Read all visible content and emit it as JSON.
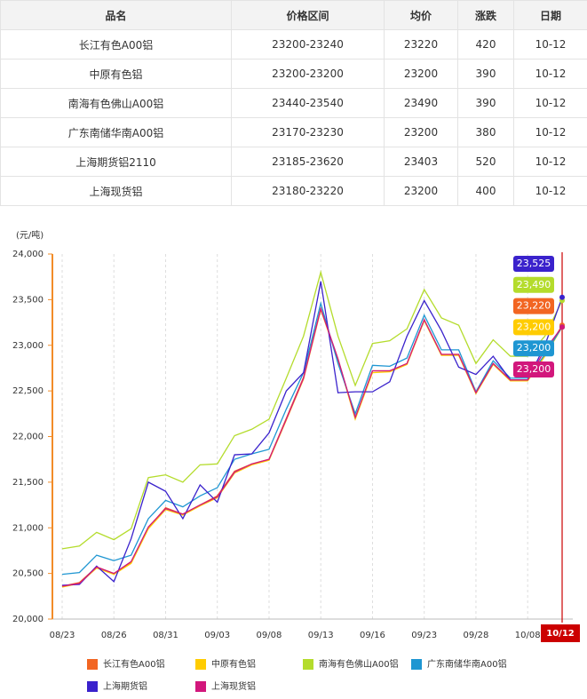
{
  "table": {
    "header": [
      "品名",
      "价格区间",
      "均价",
      "涨跌",
      "日期"
    ],
    "rows": [
      [
        "长江有色A00铝",
        "23200-23240",
        "23220",
        "420",
        "10-12"
      ],
      [
        "中原有色铝",
        "23200-23200",
        "23200",
        "390",
        "10-12"
      ],
      [
        "南海有色佛山A00铝",
        "23440-23540",
        "23490",
        "390",
        "10-12"
      ],
      [
        "广东南储华南A00铝",
        "23170-23230",
        "23200",
        "380",
        "10-12"
      ],
      [
        "上海期货铝2110",
        "23185-23620",
        "23403",
        "520",
        "10-12"
      ],
      [
        "上海现货铝",
        "23180-23220",
        "23200",
        "400",
        "10-12"
      ]
    ]
  },
  "chart_data": {
    "type": "line",
    "y_label": "(元/吨)",
    "categories": [
      "08/23",
      null,
      null,
      "08/26",
      null,
      null,
      "08/31",
      null,
      null,
      "09/03",
      null,
      null,
      "09/08",
      null,
      null,
      "09/13",
      null,
      null,
      "09/16",
      null,
      null,
      "09/23",
      null,
      null,
      "09/28",
      null,
      null,
      "10/08",
      null,
      "10/12"
    ],
    "ylim": [
      20000,
      24000
    ],
    "yticks": [
      {
        "value": 20000,
        "label": "20,000"
      },
      {
        "value": 20500,
        "label": "20,500"
      },
      {
        "value": 21000,
        "label": "21,000"
      },
      {
        "value": 21500,
        "label": "21,500"
      },
      {
        "value": 22000,
        "label": "22,000"
      },
      {
        "value": 22500,
        "label": "22,500"
      },
      {
        "value": 23000,
        "label": "23,000"
      },
      {
        "value": 23500,
        "label": "23,500"
      },
      {
        "value": 24000,
        "label": "24,000"
      }
    ],
    "series": [
      {
        "name": "长江有色A00铝",
        "color": "#f26522",
        "values": [
          20360,
          20400,
          20570,
          20500,
          20620,
          21000,
          21220,
          21150,
          21250,
          21350,
          21620,
          21700,
          21750,
          22200,
          22650,
          23400,
          22850,
          22200,
          22720,
          22720,
          22800,
          23280,
          22900,
          22900,
          22480,
          22800,
          22620,
          22620,
          22900,
          23220
        ],
        "value_labels": [
          null,
          null,
          null,
          null,
          null,
          null,
          null,
          null,
          null,
          null,
          null,
          null,
          null,
          null,
          null,
          null,
          null,
          null,
          null,
          null,
          null,
          null,
          null,
          null,
          null,
          null,
          null,
          null,
          null,
          "23,220"
        ]
      },
      {
        "name": "中原有色铝",
        "color": "#ffcc00",
        "values": [
          20350,
          20390,
          20560,
          20490,
          20610,
          20990,
          21200,
          21140,
          21240,
          21330,
          21600,
          21690,
          21740,
          22180,
          22630,
          23390,
          22840,
          22190,
          22700,
          22710,
          22790,
          23270,
          22890,
          22890,
          22470,
          22790,
          22610,
          22610,
          22880,
          23200
        ],
        "value_labels": [
          null,
          null,
          null,
          null,
          null,
          null,
          null,
          null,
          null,
          null,
          null,
          null,
          null,
          null,
          null,
          null,
          null,
          null,
          null,
          null,
          null,
          null,
          null,
          null,
          null,
          null,
          null,
          null,
          null,
          "23,200"
        ]
      },
      {
        "name": "南海有色佛山A00铝",
        "color": "#b4dc2c",
        "values": [
          20770,
          20800,
          20950,
          20870,
          20990,
          21550,
          21580,
          21500,
          21690,
          21700,
          22010,
          22080,
          22190,
          22640,
          23100,
          23800,
          23100,
          22560,
          23020,
          23050,
          23180,
          23610,
          23300,
          23220,
          22800,
          23060,
          22880,
          22880,
          23100,
          23490
        ],
        "value_labels": [
          null,
          null,
          null,
          null,
          null,
          null,
          null,
          null,
          null,
          null,
          null,
          null,
          null,
          null,
          null,
          null,
          null,
          null,
          null,
          null,
          null,
          null,
          null,
          null,
          null,
          null,
          null,
          null,
          null,
          "23,490"
        ]
      },
      {
        "name": "广东南储华南A00铝",
        "color": "#1e96d2",
        "values": [
          20490,
          20510,
          20700,
          20640,
          20700,
          21100,
          21300,
          21230,
          21350,
          21440,
          21750,
          21810,
          21860,
          22300,
          22700,
          23460,
          22800,
          22250,
          22780,
          22770,
          22860,
          23330,
          22950,
          22950,
          22490,
          22830,
          22640,
          22640,
          22900,
          23200
        ],
        "value_labels": [
          null,
          null,
          null,
          null,
          null,
          null,
          null,
          null,
          null,
          null,
          null,
          null,
          null,
          null,
          null,
          null,
          null,
          null,
          null,
          null,
          null,
          null,
          null,
          null,
          null,
          null,
          null,
          null,
          null,
          "23,200"
        ]
      },
      {
        "name": "上海期货铝",
        "color": "#3a22cc",
        "values": [
          20370,
          20380,
          20580,
          20410,
          20880,
          21500,
          21400,
          21100,
          21470,
          21280,
          21800,
          21810,
          22040,
          22500,
          22700,
          23700,
          22480,
          22490,
          22490,
          22600,
          23100,
          23490,
          23160,
          22760,
          22680,
          22880,
          22620,
          22620,
          23000,
          23525
        ],
        "value_labels": [
          null,
          null,
          null,
          null,
          null,
          null,
          null,
          null,
          null,
          null,
          null,
          null,
          null,
          null,
          null,
          null,
          null,
          null,
          null,
          null,
          null,
          null,
          null,
          null,
          null,
          null,
          null,
          null,
          null,
          "23,525"
        ]
      },
      {
        "name": "上海现货铝",
        "color": "#d2177c",
        "values": [
          20360,
          20390,
          20570,
          20500,
          20630,
          21010,
          21210,
          21150,
          21250,
          21340,
          21610,
          21700,
          21750,
          22190,
          22640,
          23400,
          22850,
          22210,
          22720,
          22720,
          22800,
          23280,
          22900,
          22900,
          22480,
          22800,
          22620,
          22620,
          22950,
          23200
        ],
        "value_labels": [
          null,
          null,
          null,
          null,
          null,
          null,
          null,
          null,
          null,
          null,
          null,
          null,
          null,
          null,
          null,
          null,
          null,
          null,
          null,
          null,
          null,
          null,
          null,
          null,
          null,
          null,
          null,
          null,
          null,
          "23,200"
        ]
      }
    ]
  }
}
